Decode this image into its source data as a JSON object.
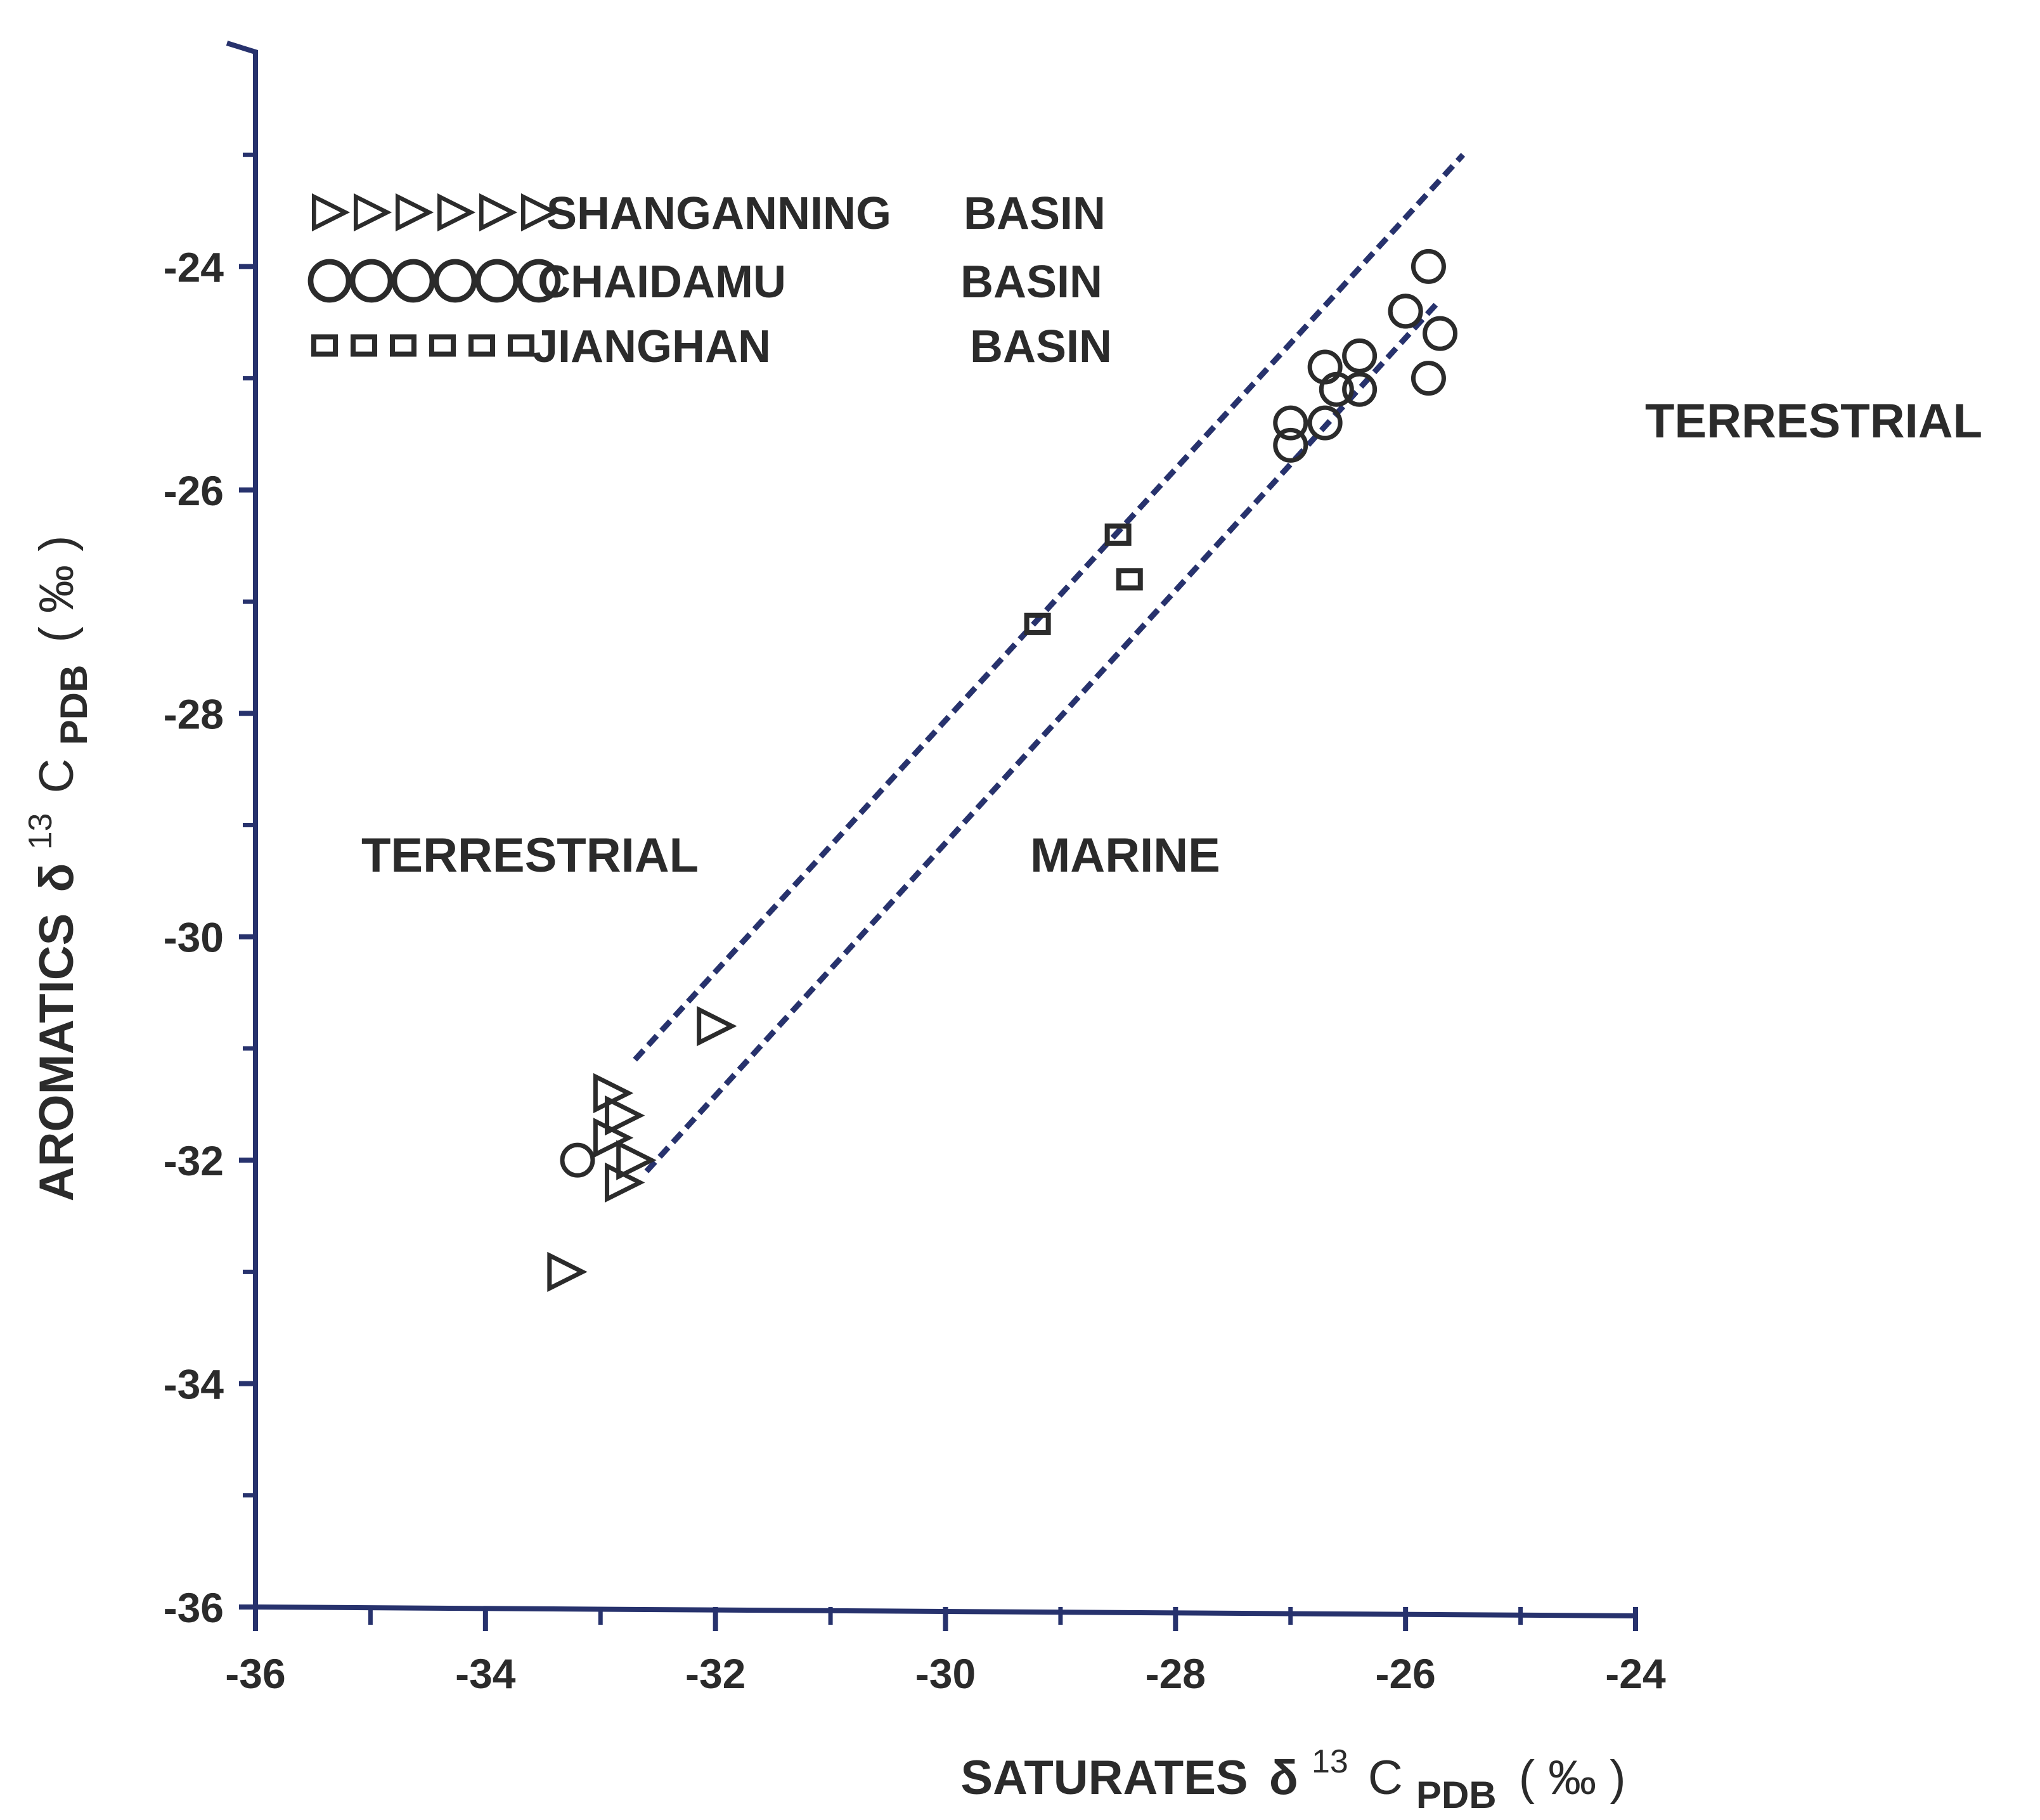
{
  "colors": {
    "axis": "#27326d",
    "guide": "#27326d",
    "marker": "#2b2b2b",
    "text": "#2b2b2b"
  },
  "chart_data": {
    "type": "scatter",
    "xlim": [
      -36,
      -24
    ],
    "ylim": [
      -36,
      -22
    ],
    "x_major_ticks": [
      -36,
      -34,
      -32,
      -30,
      -28,
      -26,
      -24
    ],
    "x_minor_ticks": [
      -35,
      -33,
      -31,
      -29,
      -27,
      -25
    ],
    "y_major_ticks": [
      -36,
      -34,
      -32,
      -30,
      -28,
      -26,
      -24
    ],
    "y_minor_ticks": [
      -35,
      -33,
      -31,
      -29,
      -27,
      -25,
      -23
    ],
    "xlabel": {
      "main": "SATURATES",
      "delta": "δ",
      "superscript": "13",
      "c": "C",
      "subscript": "PDB",
      "unit": "( ‰ )"
    },
    "ylabel": {
      "main": "AROMATICS",
      "delta": "δ",
      "superscript": "13",
      "c": "C",
      "subscript": "PDB",
      "unit": "( ‰ )"
    },
    "legend": [
      {
        "marker": "triangle",
        "name": "SHANGANNING",
        "basin": "BASIN",
        "repeat": 6
      },
      {
        "marker": "circle",
        "name": "CHAIDAMU",
        "basin": "BASIN",
        "repeat": 6
      },
      {
        "marker": "square",
        "name": "JIANGHAN",
        "basin": "BASIN",
        "repeat": 6
      }
    ],
    "region_labels": {
      "left": "TERRESTRIAL",
      "middle": "MARINE",
      "right": "TERRESTRIAL"
    },
    "guide_lines": [
      {
        "name": "upper-boundary",
        "x": [
          -32.7,
          -25.5
        ],
        "y": [
          -31.1,
          -23.0
        ]
      },
      {
        "name": "lower-boundary",
        "x": [
          -32.6,
          -25.7
        ],
        "y": [
          -32.1,
          -24.3
        ]
      }
    ],
    "series": [
      {
        "name": "SHANGANNING BASIN",
        "marker": "triangle",
        "points": [
          [
            -33.3,
            -33.0
          ],
          [
            -32.9,
            -31.4
          ],
          [
            -32.9,
            -31.8
          ],
          [
            -32.8,
            -31.6
          ],
          [
            -32.7,
            -32.0
          ],
          [
            -32.8,
            -32.2
          ],
          [
            -32.0,
            -30.8
          ]
        ]
      },
      {
        "name": "CHAIDAMU BASIN",
        "marker": "circle",
        "points": [
          [
            -33.2,
            -32.0
          ],
          [
            -27.0,
            -25.4
          ],
          [
            -27.0,
            -25.6
          ],
          [
            -26.7,
            -25.4
          ],
          [
            -26.7,
            -24.9
          ],
          [
            -26.6,
            -25.1
          ],
          [
            -26.4,
            -25.1
          ],
          [
            -26.4,
            -24.8
          ],
          [
            -26.0,
            -24.4
          ],
          [
            -26.0,
            -24.4
          ],
          [
            -25.8,
            -24.0
          ],
          [
            -25.7,
            -24.6
          ],
          [
            -25.8,
            -25.0
          ]
        ]
      },
      {
        "name": "JIANGHAN BASIN",
        "marker": "square",
        "points": [
          [
            -29.2,
            -27.2
          ],
          [
            -28.5,
            -26.4
          ],
          [
            -28.4,
            -26.8
          ]
        ]
      }
    ]
  }
}
